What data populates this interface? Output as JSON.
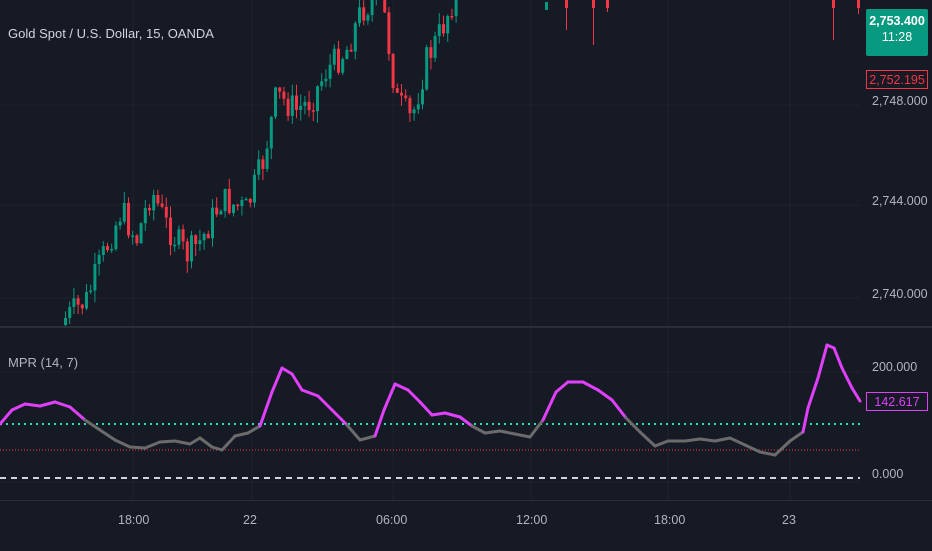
{
  "symbol": {
    "title": "Gold Spot / U.S. Dollar, 15, OANDA"
  },
  "price_scale": {
    "ticks": [
      "2,748.000",
      "2,744.000",
      "2,740.000"
    ],
    "last_price": "2,753.400",
    "countdown": "11:28",
    "high_line_price": "2,752.195",
    "last_price_color": "#089981",
    "high_line_color": "#f23645"
  },
  "indicator": {
    "name": "MPR (14, 7)",
    "value": "142.617",
    "ticks": [
      "200.000",
      "0.000"
    ],
    "line_color": "#e040fb",
    "neutral_color": "#6b6b6b",
    "upper_level_color": "#26e0b5",
    "lower_level_color": "#f23645"
  },
  "time_axis": {
    "labels": [
      "18:00",
      "22",
      "06:00",
      "12:00",
      "18:00",
      "23"
    ]
  },
  "colors": {
    "up": "#089981",
    "down": "#f23645",
    "background": "#161a25"
  }
}
